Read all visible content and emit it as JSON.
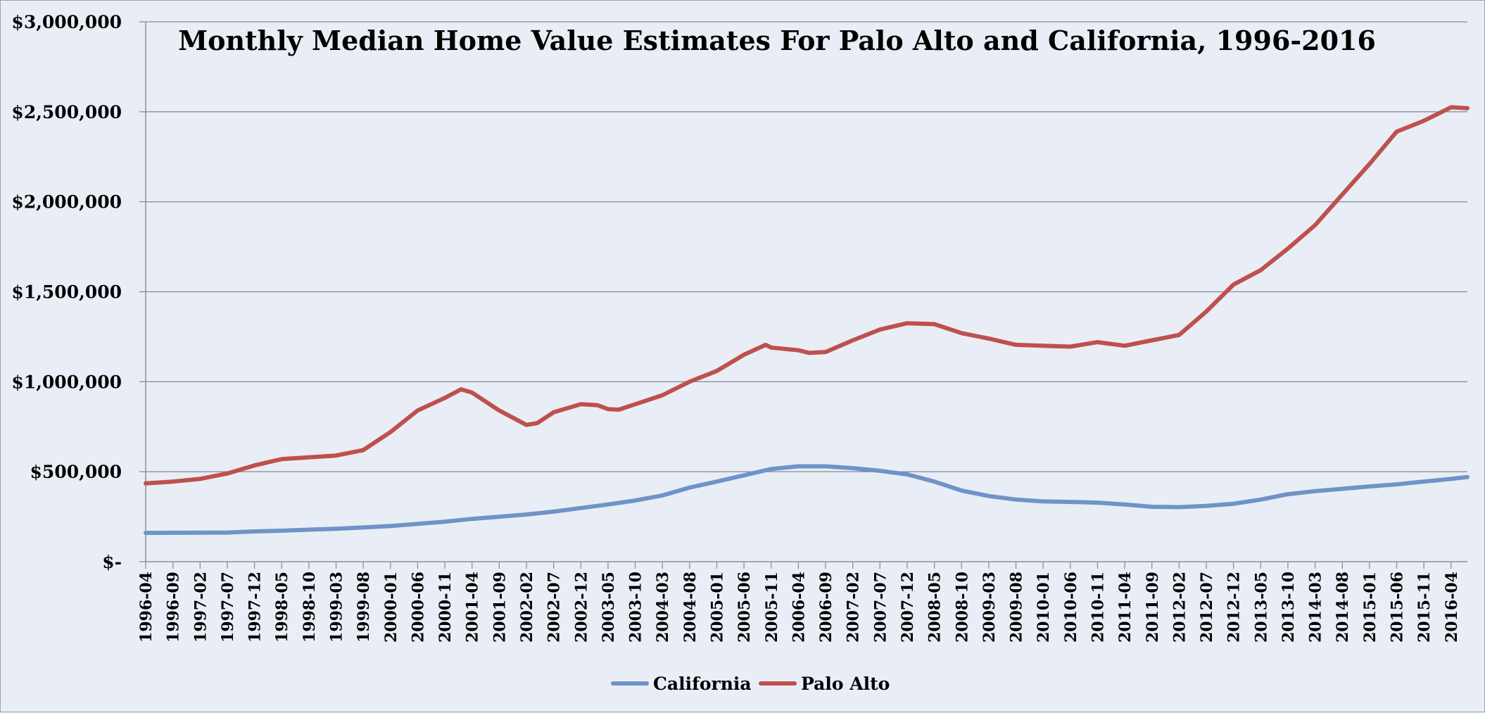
{
  "chart_data": {
    "type": "line",
    "title": "Monthly Median Home Value Estimates For Palo Alto and California, 1996-2016",
    "xlabel": "",
    "ylabel": "",
    "ylim": [
      0,
      3000000
    ],
    "y_ticks": [
      {
        "value": 0,
        "label": "$-"
      },
      {
        "value": 500000,
        "label": "$500,000"
      },
      {
        "value": 1000000,
        "label": "$1,000,000"
      },
      {
        "value": 1500000,
        "label": "$1,500,000"
      },
      {
        "value": 2000000,
        "label": "$2,000,000"
      },
      {
        "value": 2500000,
        "label": "$2,500,000"
      },
      {
        "value": 3000000,
        "label": "$3,000,000"
      }
    ],
    "x_start": "1996-04",
    "x_end": "2016-07",
    "x_tick_labels": [
      "1996-04",
      "1996-09",
      "1997-02",
      "1997-07",
      "1997-12",
      "1998-05",
      "1998-10",
      "1999-03",
      "1999-08",
      "2000-01",
      "2000-06",
      "2000-11",
      "2001-04",
      "2001-09",
      "2002-02",
      "2002-07",
      "2002-12",
      "2003-05",
      "2003-10",
      "2004-03",
      "2004-08",
      "2005-01",
      "2005-06",
      "2005-11",
      "2006-04",
      "2006-09",
      "2007-02",
      "2007-07",
      "2007-12",
      "2008-05",
      "2008-10",
      "2009-03",
      "2009-08",
      "2010-01",
      "2010-06",
      "2010-11",
      "2011-04",
      "2011-09",
      "2012-02",
      "2012-07",
      "2012-12",
      "2013-05",
      "2013-10",
      "2014-03",
      "2014-08",
      "2015-01",
      "2015-06",
      "2015-11",
      "2016-04"
    ],
    "legend": "bottom-center",
    "grid": "horizontal",
    "series": [
      {
        "name": "California",
        "color": "#6f93c8",
        "points": [
          [
            "1996-04",
            160000
          ],
          [
            "1997-07",
            162000
          ],
          [
            "1997-12",
            168000
          ],
          [
            "1998-05",
            172000
          ],
          [
            "1998-10",
            178000
          ],
          [
            "1999-03",
            183000
          ],
          [
            "1999-08",
            190000
          ],
          [
            "2000-01",
            198000
          ],
          [
            "2000-06",
            210000
          ],
          [
            "2000-11",
            222000
          ],
          [
            "2001-04",
            238000
          ],
          [
            "2001-09",
            250000
          ],
          [
            "2002-02",
            262000
          ],
          [
            "2002-07",
            278000
          ],
          [
            "2002-12",
            298000
          ],
          [
            "2003-05",
            318000
          ],
          [
            "2003-10",
            340000
          ],
          [
            "2004-03",
            368000
          ],
          [
            "2004-08",
            412000
          ],
          [
            "2005-01",
            445000
          ],
          [
            "2005-06",
            480000
          ],
          [
            "2005-11",
            515000
          ],
          [
            "2006-04",
            530000
          ],
          [
            "2006-09",
            530000
          ],
          [
            "2007-02",
            520000
          ],
          [
            "2007-07",
            505000
          ],
          [
            "2007-12",
            485000
          ],
          [
            "2008-05",
            445000
          ],
          [
            "2008-10",
            395000
          ],
          [
            "2009-03",
            365000
          ],
          [
            "2009-08",
            345000
          ],
          [
            "2010-01",
            335000
          ],
          [
            "2010-06",
            332000
          ],
          [
            "2010-11",
            328000
          ],
          [
            "2011-04",
            318000
          ],
          [
            "2011-09",
            305000
          ],
          [
            "2012-02",
            303000
          ],
          [
            "2012-07",
            310000
          ],
          [
            "2012-12",
            322000
          ],
          [
            "2013-05",
            345000
          ],
          [
            "2013-10",
            375000
          ],
          [
            "2014-03",
            392000
          ],
          [
            "2014-08",
            405000
          ],
          [
            "2015-01",
            418000
          ],
          [
            "2015-06",
            430000
          ],
          [
            "2015-11",
            445000
          ],
          [
            "2016-04",
            460000
          ],
          [
            "2016-07",
            470000
          ]
        ]
      },
      {
        "name": "Palo Alto",
        "color": "#bf504d",
        "points": [
          [
            "1996-04",
            435000
          ],
          [
            "1996-09",
            445000
          ],
          [
            "1997-02",
            460000
          ],
          [
            "1997-07",
            490000
          ],
          [
            "1997-12",
            535000
          ],
          [
            "1998-05",
            570000
          ],
          [
            "1998-10",
            580000
          ],
          [
            "1999-03",
            590000
          ],
          [
            "1999-08",
            620000
          ],
          [
            "2000-01",
            720000
          ],
          [
            "2000-06",
            840000
          ],
          [
            "2000-11",
            910000
          ],
          [
            "2001-02",
            958000
          ],
          [
            "2001-04",
            940000
          ],
          [
            "2001-09",
            840000
          ],
          [
            "2002-02",
            760000
          ],
          [
            "2002-04",
            770000
          ],
          [
            "2002-07",
            830000
          ],
          [
            "2002-12",
            875000
          ],
          [
            "2003-03",
            870000
          ],
          [
            "2003-05",
            848000
          ],
          [
            "2003-07",
            845000
          ],
          [
            "2003-10",
            875000
          ],
          [
            "2004-03",
            925000
          ],
          [
            "2004-08",
            1000000
          ],
          [
            "2005-01",
            1060000
          ],
          [
            "2005-06",
            1150000
          ],
          [
            "2005-10",
            1205000
          ],
          [
            "2005-11",
            1190000
          ],
          [
            "2006-04",
            1175000
          ],
          [
            "2006-06",
            1160000
          ],
          [
            "2006-09",
            1165000
          ],
          [
            "2007-02",
            1230000
          ],
          [
            "2007-07",
            1290000
          ],
          [
            "2007-12",
            1325000
          ],
          [
            "2008-05",
            1320000
          ],
          [
            "2008-10",
            1270000
          ],
          [
            "2009-03",
            1240000
          ],
          [
            "2009-08",
            1205000
          ],
          [
            "2010-01",
            1200000
          ],
          [
            "2010-06",
            1195000
          ],
          [
            "2010-11",
            1220000
          ],
          [
            "2011-04",
            1200000
          ],
          [
            "2011-09",
            1230000
          ],
          [
            "2012-02",
            1260000
          ],
          [
            "2012-07",
            1390000
          ],
          [
            "2012-12",
            1540000
          ],
          [
            "2013-05",
            1620000
          ],
          [
            "2013-10",
            1740000
          ],
          [
            "2014-03",
            1870000
          ],
          [
            "2014-08",
            2040000
          ],
          [
            "2015-01",
            2210000
          ],
          [
            "2015-06",
            2390000
          ],
          [
            "2015-11",
            2450000
          ],
          [
            "2016-04",
            2525000
          ],
          [
            "2016-07",
            2520000
          ]
        ]
      }
    ]
  }
}
